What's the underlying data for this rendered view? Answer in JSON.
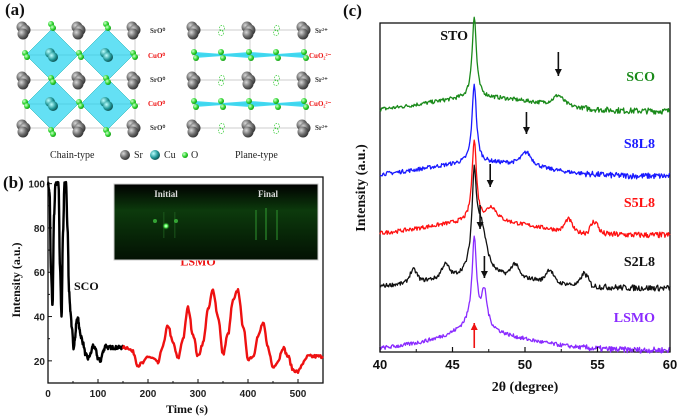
{
  "figure": {
    "panel_labels": [
      "(a)",
      "(b)",
      "(c)"
    ]
  },
  "panel_a": {
    "left_title": "Chain-type",
    "right_title": "Plane-type",
    "left_layer_labels": [
      "SrO⁰",
      "CuO⁰",
      "SrO⁰",
      "CuO⁰",
      "SrO⁰"
    ],
    "right_layer_labels": [
      "Sr²⁺",
      "CuO₂²⁻",
      "Sr²⁺",
      "CuO₂²⁻",
      "Sr²⁺"
    ],
    "legend": [
      {
        "label": "Sr",
        "color": "#6b6b6b"
      },
      {
        "label": "Cu",
        "color": "#2aa6a6"
      },
      {
        "label": "O",
        "color": "#33dd33"
      }
    ],
    "colors": {
      "octahedron": "#22d3f0",
      "strontium": "#666666",
      "oxygen": "#3ce23c",
      "copper": "#1d8f8f",
      "red_label": "#e11111"
    }
  },
  "chart_data": [
    {
      "id": "panel_b",
      "type": "line",
      "title": "",
      "xlabel": "Time (s)",
      "ylabel": "Intensity (a.u.)",
      "xlim": [
        0,
        550
      ],
      "ylim": [
        10,
        103
      ],
      "xticks": [
        0,
        100,
        200,
        300,
        400,
        500
      ],
      "yticks": [
        20,
        40,
        60,
        80,
        100
      ],
      "grid": false,
      "annotations": [
        {
          "text": "SCO",
          "x": 52,
          "y": 52,
          "color": "#111111"
        },
        {
          "text": "LSMO",
          "x": 300,
          "y": 63,
          "color": "#ee1111"
        }
      ],
      "inset": {
        "left_label": "Initial",
        "right_label": "Final"
      },
      "series": [
        {
          "name": "SCO",
          "color": "#000000",
          "x": [
            0,
            3,
            6,
            9,
            12,
            15,
            18,
            21,
            24,
            27,
            30,
            33,
            36,
            39,
            42,
            45,
            48,
            51,
            54,
            57,
            60,
            63,
            66,
            70,
            75,
            80,
            85,
            90,
            95,
            100,
            105,
            110,
            115,
            120,
            125,
            130,
            135,
            140,
            145,
            150
          ],
          "y": [
            100,
            96,
            60,
            45,
            85,
            100,
            100,
            100,
            62,
            40,
            78,
            100,
            100,
            80,
            52,
            42,
            34,
            26,
            30,
            38,
            39,
            34,
            31,
            28,
            23,
            21,
            23,
            27,
            25,
            21,
            20,
            24,
            27,
            26,
            26,
            26,
            26,
            26,
            26,
            26
          ]
        },
        {
          "name": "LSMO",
          "color": "#ee1111",
          "x": [
            150,
            160,
            170,
            180,
            190,
            200,
            210,
            220,
            230,
            240,
            250,
            260,
            270,
            280,
            290,
            300,
            310,
            320,
            330,
            340,
            350,
            360,
            370,
            380,
            390,
            400,
            410,
            420,
            430,
            440,
            450,
            460,
            470,
            480,
            490,
            500,
            510,
            520,
            530,
            540,
            550
          ],
          "y": [
            26,
            26,
            24,
            18,
            19,
            22,
            21,
            19,
            27,
            36,
            28,
            21,
            30,
            44,
            32,
            22,
            28,
            43,
            52,
            40,
            23,
            32,
            47,
            52,
            36,
            21,
            22,
            31,
            37,
            26,
            17,
            20,
            26,
            22,
            16,
            15,
            19,
            22,
            22,
            22,
            22
          ]
        }
      ]
    },
    {
      "id": "panel_c",
      "type": "line",
      "title": "",
      "xlabel": "2θ (degree)",
      "ylabel": "Intensity (a.u.)",
      "xlim": [
        40,
        60
      ],
      "xticks": [
        40,
        45,
        50,
        55,
        60
      ],
      "yticks": [],
      "grid": false,
      "substrate_label": "STO",
      "substrate_peak": 46.5,
      "series": [
        {
          "name": "SCO",
          "color": "#1a8a1a",
          "offset": 5,
          "film_peak": 52.3,
          "film_peak_height": 0.38,
          "arrow_color": "#111111",
          "satellites": []
        },
        {
          "name": "S8L8",
          "color": "#1a1aff",
          "offset": 4,
          "film_peak": 50.1,
          "film_peak_height": 0.5,
          "arrow_color": "#111111",
          "satellites": []
        },
        {
          "name": "S5L8",
          "color": "#ff1111",
          "offset": 3,
          "film_peak": 47.7,
          "film_peak_height": 0.5,
          "arrow_color": "#111111",
          "satellites": [
            53.0,
            54.8
          ]
        },
        {
          "name": "S2L8",
          "color": "#111111",
          "offset": 2,
          "film_peak": 47.0,
          "film_peak_height": 1.1,
          "arrow_color": "#111111",
          "satellites": [
            42.3,
            44.5,
            49.3,
            51.7,
            54.1
          ]
        },
        {
          "name": "LSMO",
          "color": "#8a2bff",
          "offset": 1,
          "film_peak": 47.2,
          "film_peak_height": 1.2,
          "arrow_color": "#ee1111",
          "satellites": []
        }
      ]
    }
  ]
}
